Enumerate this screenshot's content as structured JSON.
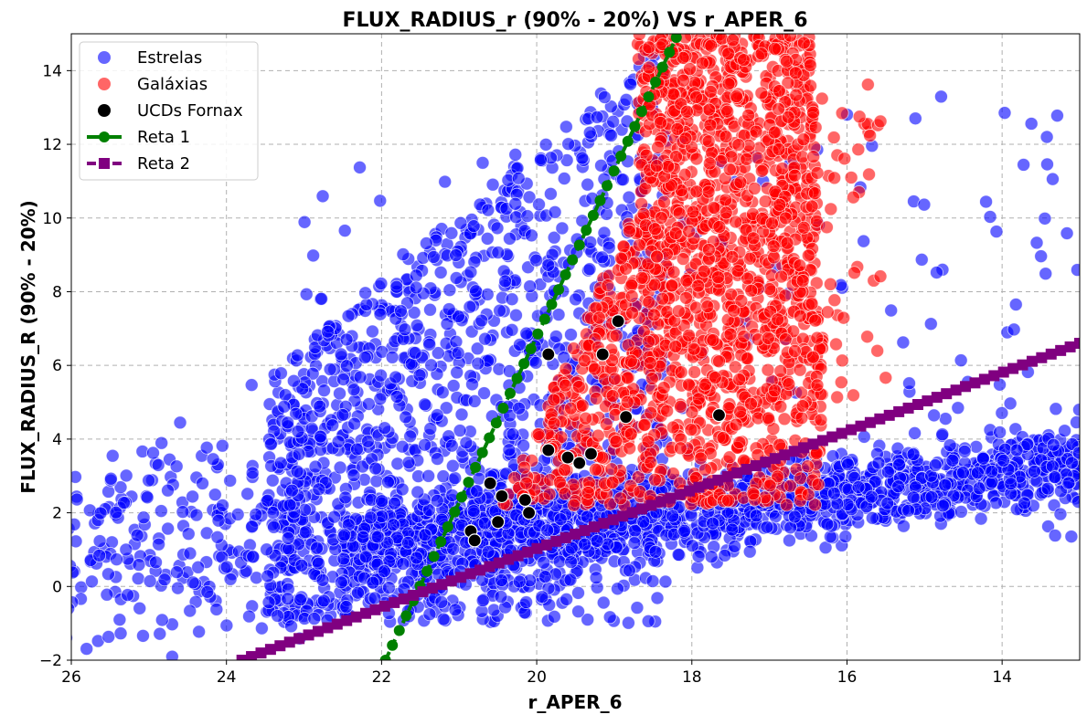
{
  "chart_data": {
    "type": "scatter",
    "title": "FLUX_RADIUS_r (90% - 20%) VS r_APER_6",
    "xlabel": "r_APER_6",
    "ylabel": "FLUX_RADIUS_R (90% - 20%)",
    "xlim": [
      26,
      13
    ],
    "ylim": [
      -2,
      15
    ],
    "x_inverted": true,
    "xticks": [
      26,
      24,
      22,
      20,
      18,
      16,
      14
    ],
    "yticks": [
      -2,
      0,
      2,
      4,
      6,
      8,
      10,
      12,
      14
    ],
    "grid": true,
    "grid_style": "dashed",
    "legend_position": "top-left",
    "series": [
      {
        "name": "Estrelas",
        "kind": "scatter",
        "color": "#0000ff",
        "alpha": 0.6,
        "description_regions": [
          {
            "region": "stellar locus",
            "x_range": [
              22,
              13
            ],
            "y_center_at_x": [
              [
                22,
                1.2
              ],
              [
                18,
                1.9
              ],
              [
                13,
                3.3
              ]
            ],
            "spread": 0.8
          },
          {
            "region": "faint extended fan",
            "x_range": [
              26,
              18.5
            ],
            "y_range": [
              -2,
              15
            ]
          }
        ]
      },
      {
        "name": "Galáxias",
        "kind": "scatter",
        "color": "#ff0000",
        "alpha": 0.6,
        "description_regions": [
          {
            "region": "galaxy cloud",
            "x_range": [
              20.5,
              16.2
            ],
            "y_range": [
              2.2,
              15
            ]
          }
        ]
      },
      {
        "name": "UCDs Fornax",
        "kind": "scatter",
        "color": "#000000",
        "points": [
          [
            18.95,
            7.2
          ],
          [
            19.85,
            6.3
          ],
          [
            19.15,
            6.3
          ],
          [
            18.85,
            4.6
          ],
          [
            17.65,
            4.65
          ],
          [
            19.85,
            3.7
          ],
          [
            19.6,
            3.5
          ],
          [
            19.45,
            3.35
          ],
          [
            19.3,
            3.6
          ],
          [
            20.6,
            2.8
          ],
          [
            20.45,
            2.45
          ],
          [
            20.15,
            2.35
          ],
          [
            20.1,
            2.0
          ],
          [
            20.5,
            1.75
          ],
          [
            20.85,
            1.5
          ],
          [
            20.8,
            1.25
          ]
        ]
      },
      {
        "name": "Reta 1",
        "kind": "line",
        "color": "#008000",
        "marker": "circle",
        "linestyle": "dashed",
        "endpoints": [
          [
            21.95,
            -2
          ],
          [
            18.2,
            14.9
          ]
        ]
      },
      {
        "name": "Reta 2",
        "kind": "line",
        "color": "#800080",
        "marker": "square",
        "linestyle": "dashed",
        "endpoints": [
          [
            23.8,
            -2
          ],
          [
            13,
            6.6
          ]
        ]
      }
    ]
  }
}
